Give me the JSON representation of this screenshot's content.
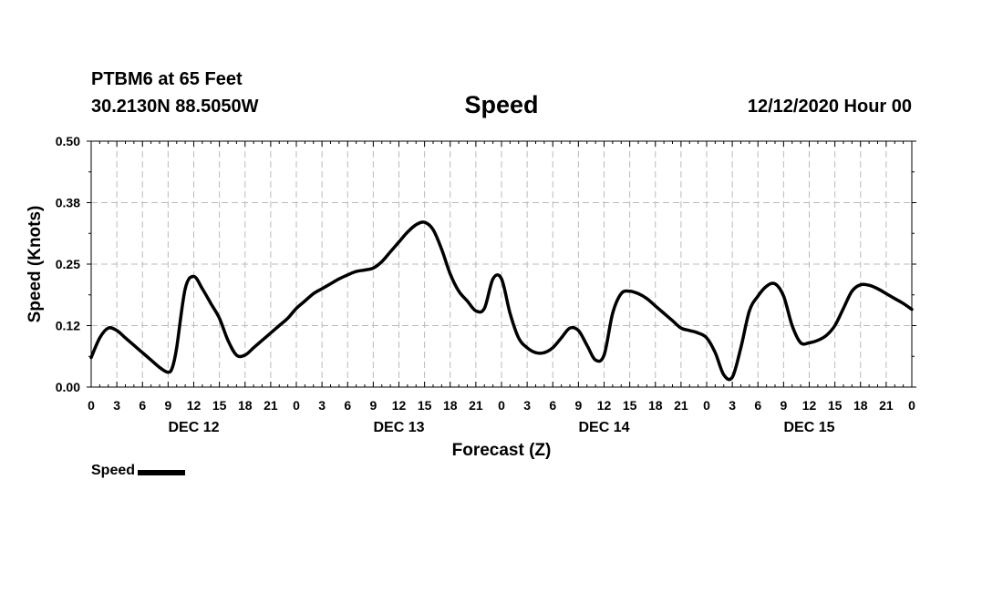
{
  "header": {
    "station": "PTBM6 at 65 Feet",
    "coords": "30.2130N 88.5050W",
    "title": "Speed",
    "datetime": "12/12/2020 Hour 00"
  },
  "chart_data": {
    "type": "line",
    "title": "Speed",
    "xlabel": "Forecast (Z)",
    "ylabel": "Speed (Knots)",
    "ylim": [
      0,
      0.5
    ],
    "yticks": [
      "0.00",
      "0.12",
      "0.25",
      "0.38",
      "0.50"
    ],
    "xlim": [
      0,
      96
    ],
    "xtick_labels": [
      "0",
      "3",
      "6",
      "9",
      "12",
      "15",
      "18",
      "21",
      "0",
      "3",
      "6",
      "9",
      "12",
      "15",
      "18",
      "21",
      "0",
      "3",
      "6",
      "9",
      "12",
      "15",
      "18",
      "21",
      "0",
      "3",
      "6",
      "9",
      "12",
      "15",
      "18",
      "21",
      "0"
    ],
    "day_labels": [
      {
        "label": "DEC 12",
        "hour": 12
      },
      {
        "label": "DEC 13",
        "hour": 36
      },
      {
        "label": "DEC 14",
        "hour": 60
      },
      {
        "label": "DEC 15",
        "hour": 84
      }
    ],
    "grid": true,
    "legend_position": "bottom-left",
    "series": [
      {
        "name": "Speed",
        "color": "#000000",
        "x": [
          0,
          1,
          2,
          3,
          4,
          5,
          6,
          7,
          8,
          9,
          9.5,
          10,
          11,
          12,
          13,
          14,
          15,
          16,
          17,
          18,
          19,
          20,
          21,
          22,
          23,
          24,
          25,
          26,
          27,
          28,
          29,
          30,
          31,
          32,
          33,
          34,
          35,
          36,
          37,
          38,
          39,
          40,
          41,
          42,
          43,
          44,
          45,
          46,
          47,
          48,
          49,
          50,
          51,
          52,
          53,
          54,
          55,
          56,
          57,
          58,
          59,
          60,
          61,
          62,
          63,
          64,
          65,
          66,
          67,
          68,
          69,
          70,
          71,
          72,
          73,
          74,
          75,
          76,
          77,
          78,
          79,
          80,
          81,
          82,
          83,
          84,
          85,
          86,
          87,
          88,
          89,
          90,
          91,
          92,
          93,
          94,
          95,
          96
        ],
        "y": [
          0.06,
          0.1,
          0.12,
          0.115,
          0.1,
          0.085,
          0.07,
          0.055,
          0.04,
          0.03,
          0.04,
          0.08,
          0.2,
          0.225,
          0.2,
          0.17,
          0.14,
          0.095,
          0.065,
          0.065,
          0.08,
          0.095,
          0.11,
          0.125,
          0.14,
          0.16,
          0.175,
          0.19,
          0.2,
          0.21,
          0.22,
          0.228,
          0.235,
          0.238,
          0.242,
          0.255,
          0.275,
          0.295,
          0.315,
          0.33,
          0.335,
          0.32,
          0.28,
          0.23,
          0.195,
          0.175,
          0.155,
          0.16,
          0.22,
          0.22,
          0.15,
          0.1,
          0.08,
          0.07,
          0.07,
          0.08,
          0.1,
          0.12,
          0.115,
          0.085,
          0.055,
          0.065,
          0.15,
          0.19,
          0.195,
          0.19,
          0.18,
          0.165,
          0.15,
          0.135,
          0.12,
          0.115,
          0.11,
          0.1,
          0.07,
          0.025,
          0.02,
          0.08,
          0.155,
          0.185,
          0.205,
          0.21,
          0.185,
          0.125,
          0.09,
          0.09,
          0.095,
          0.105,
          0.125,
          0.16,
          0.195,
          0.208,
          0.207,
          0.2,
          0.19,
          0.18,
          0.17,
          0.158
        ]
      }
    ]
  },
  "legend": {
    "label": "Speed"
  }
}
